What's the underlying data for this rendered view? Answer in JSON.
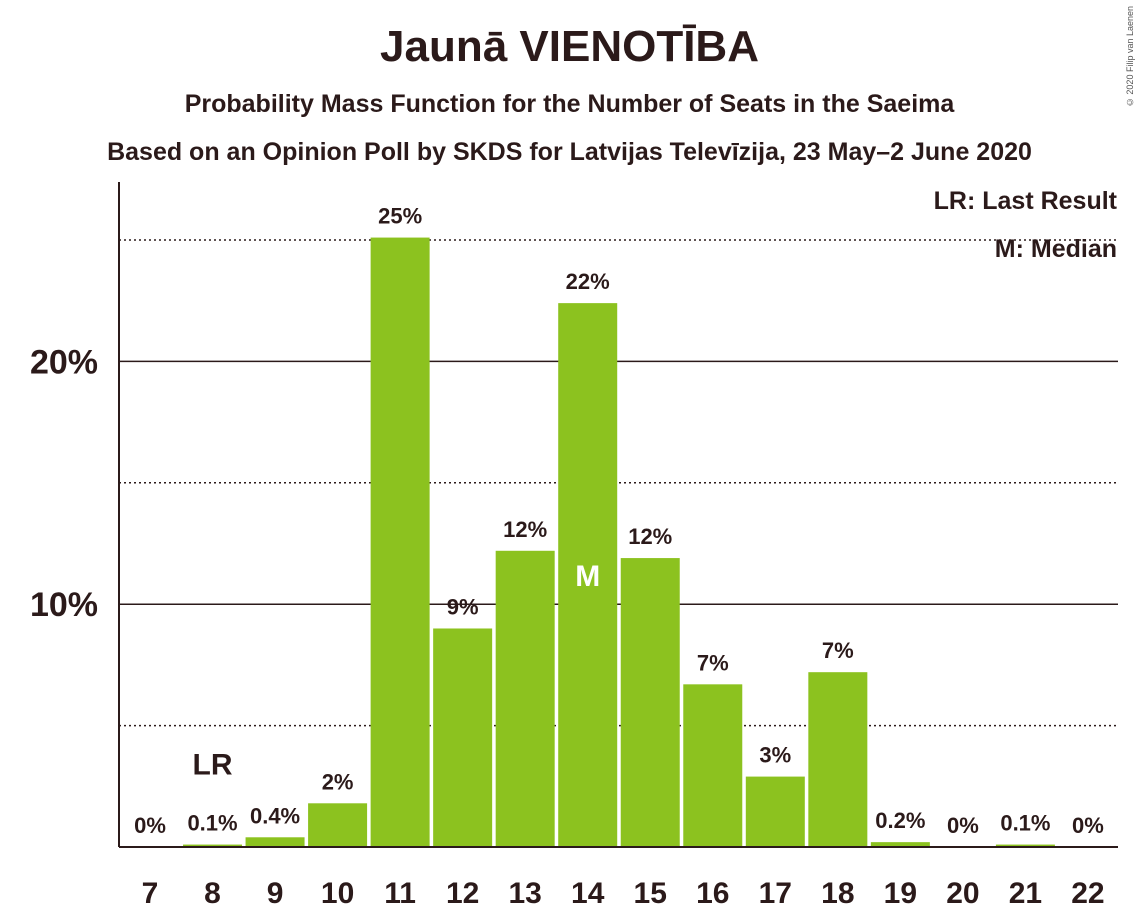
{
  "header": {
    "title": "Jaunā VIENOTĪBA",
    "subtitle1": "Probability Mass Function for the Number of Seats in the Saeima",
    "subtitle2": "Based on an Opinion Poll by SKDS for Latvijas Televīzija, 23 May–2 June 2020",
    "copyright": "© 2020 Filip van Laenen"
  },
  "legend": {
    "lr": "LR: Last Result",
    "m": "M: Median"
  },
  "colors": {
    "bar": "#8cc21f",
    "text": "#2b1a1a"
  },
  "chart_data": {
    "type": "bar",
    "categories": [
      "7",
      "8",
      "9",
      "10",
      "11",
      "12",
      "13",
      "14",
      "15",
      "16",
      "17",
      "18",
      "19",
      "20",
      "21",
      "22"
    ],
    "values": [
      0,
      0.1,
      0.4,
      1.8,
      25.1,
      9.0,
      12.2,
      22.4,
      11.9,
      6.7,
      2.9,
      7.2,
      0.2,
      0,
      0.1,
      0
    ],
    "data_labels": [
      "0%",
      "0.1%",
      "0.4%",
      "2%",
      "25%",
      "9%",
      "12%",
      "22%",
      "12%",
      "7%",
      "3%",
      "7%",
      "0.2%",
      "0%",
      "0.1%",
      "0%"
    ],
    "y_ticks": [
      {
        "value": 10,
        "label": "10%"
      },
      {
        "value": 20,
        "label": "20%"
      }
    ],
    "minor_gridlines": [
      5,
      15,
      25
    ],
    "ylim": [
      0,
      27.3
    ],
    "last_result": {
      "category": "8",
      "label": "LR"
    },
    "median": {
      "category": "14",
      "label": "M"
    },
    "legend_position": "top-right",
    "grid": true
  }
}
